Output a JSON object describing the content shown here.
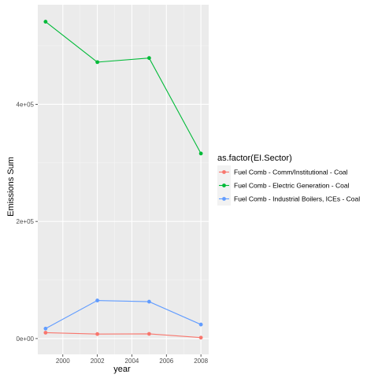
{
  "chart_data": {
    "type": "line",
    "title": "",
    "xlabel": "year",
    "ylabel": "Emissions Sum",
    "x": [
      1999,
      2002,
      2005,
      2008
    ],
    "xlim": [
      1998.55,
      2008.45
    ],
    "ylim": [
      -27000,
      570000
    ],
    "x_ticks": [
      {
        "value": 2000,
        "label": "2000"
      },
      {
        "value": 2002,
        "label": "2002"
      },
      {
        "value": 2004,
        "label": "2004"
      },
      {
        "value": 2006,
        "label": "2006"
      },
      {
        "value": 2008,
        "label": "2008"
      }
    ],
    "y_ticks": [
      {
        "value": 0,
        "label": "0e+00"
      },
      {
        "value": 200000,
        "label": "2e+05"
      },
      {
        "value": 400000,
        "label": "4e+05"
      }
    ],
    "grid": true,
    "legend": {
      "title": "as.factor(EI.Sector)",
      "position": "right"
    },
    "series": [
      {
        "name": "Fuel Comb - Comm/Institutional - Coal",
        "color": "#F8766D",
        "values": [
          10000,
          7700,
          8000,
          1600
        ]
      },
      {
        "name": "Fuel Comb - Electric Generation - Coal",
        "color": "#00BA38",
        "values": [
          541000,
          472000,
          479000,
          316000
        ]
      },
      {
        "name": "Fuel Comb - Industrial Boilers, ICEs - Coal",
        "color": "#619CFF",
        "values": [
          17000,
          65000,
          63000,
          24000
        ]
      }
    ]
  }
}
